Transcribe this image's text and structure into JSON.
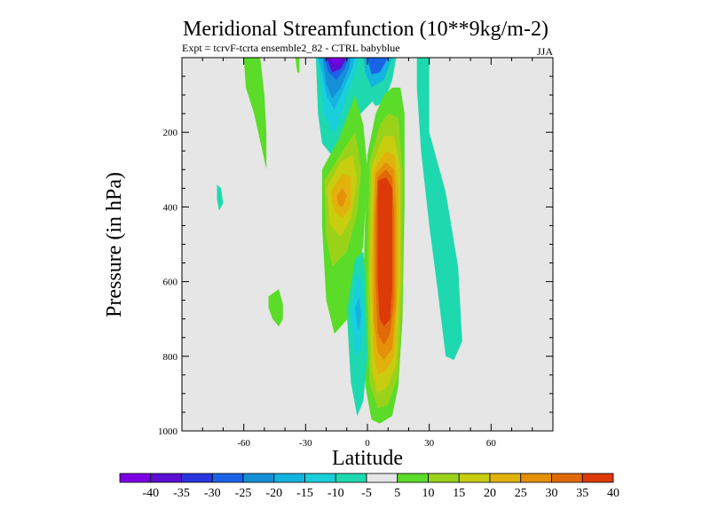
{
  "chart_data": {
    "type": "filled-contour",
    "title": "Meridional Streamfunction (10**9kg/m-2)",
    "subtitle": "Expt = tcrvF-tcrta  ensemble2_82 - CTRL babyblue",
    "season": "JJA",
    "xlabel": "Latitude",
    "ylabel": "Pressure (in hPa)",
    "xlim": [
      -90,
      90
    ],
    "ylim": [
      0,
      1000
    ],
    "y_inverted": true,
    "x_ticks": [
      "-60",
      "-30",
      "0",
      "30",
      "60"
    ],
    "x_tick_values": [
      -60,
      -30,
      0,
      30,
      60
    ],
    "y_ticks": [
      "200",
      "400",
      "600",
      "800",
      "1000"
    ],
    "y_tick_values": [
      200,
      400,
      600,
      800,
      1000
    ],
    "levels": [
      -40,
      -35,
      -30,
      -25,
      -20,
      -15,
      -10,
      -5,
      5,
      10,
      15,
      20,
      25,
      30,
      35,
      40
    ],
    "level_labels": [
      "-40",
      "-35",
      "-30",
      "-25",
      "-20",
      "-15",
      "-10",
      "-5",
      "5",
      "10",
      "15",
      "20",
      "25",
      "30",
      "35",
      "40"
    ],
    "colors": [
      "#7b00e6",
      "#5a0fd2",
      "#2a35df",
      "#1a63e6",
      "#1590d8",
      "#14b4e0",
      "#19cfdb",
      "#1ed9b0",
      "#e6e6e6",
      "#5adc28",
      "#9ad21a",
      "#c8cd10",
      "#e2b20c",
      "#e6900a",
      "#e06a0a",
      "#dc3a08"
    ],
    "background_color": "#e6e6e6",
    "features": [
      {
        "name": "pos-max-cell",
        "lat": 8,
        "p": 550,
        "peak": 40
      },
      {
        "name": "pos-left-cell",
        "lat": -12,
        "p": 350,
        "peak": 25
      },
      {
        "name": "neg-top-cell",
        "lat": -16,
        "p": 60,
        "peak": -40
      },
      {
        "name": "neg-top-cell-2",
        "lat": 0,
        "p": 40,
        "peak": -25
      },
      {
        "name": "neg-low-cell",
        "lat": -4,
        "p": 700,
        "peak": -15
      },
      {
        "name": "neg-right-band",
        "lat": 40,
        "p": 400,
        "peak": -5
      },
      {
        "name": "pos-upper-left-band",
        "lat": -40,
        "p": 120,
        "peak": 5
      },
      {
        "name": "pos-small-blob",
        "lat": -44,
        "p": 670,
        "peak": 5
      },
      {
        "name": "neg-small-blob",
        "lat": -72,
        "p": 380,
        "peak": -5
      }
    ]
  }
}
